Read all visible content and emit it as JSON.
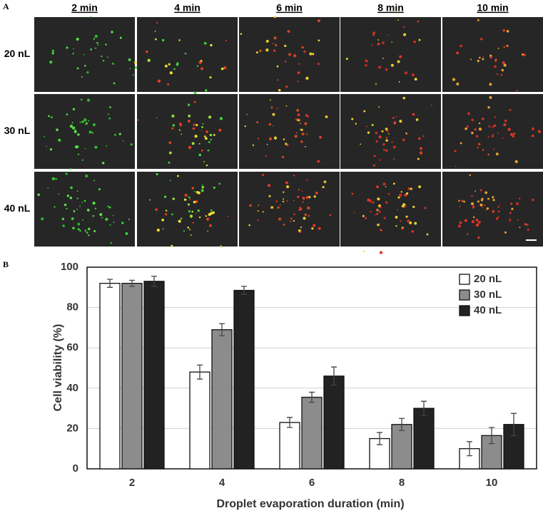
{
  "panel_a": {
    "label": "A",
    "columns": [
      "2 min",
      "4 min",
      "6 min",
      "8 min",
      "10 min"
    ],
    "rows": [
      "20 nL",
      "30 nL",
      "40 nL"
    ]
  },
  "chart_data": {
    "type": "bar",
    "panel_label": "B",
    "xlabel": "Droplet evaporation duration (min)",
    "ylabel": "Cell viability (%)",
    "categories": [
      "2",
      "4",
      "6",
      "8",
      "10"
    ],
    "series": [
      {
        "name": "20 nL",
        "color": "#ffffff",
        "values": [
          92,
          48,
          23,
          15,
          10
        ],
        "errors": [
          2,
          3.5,
          2.5,
          3,
          3.5
        ]
      },
      {
        "name": "30 nL",
        "color": "#8c8c8c",
        "values": [
          92,
          69,
          35.5,
          22,
          16.5
        ],
        "errors": [
          1.5,
          3,
          2.5,
          3,
          4
        ]
      },
      {
        "name": "40 nL",
        "color": "#222222",
        "values": [
          93,
          88.5,
          46,
          30,
          22
        ],
        "errors": [
          2.5,
          2,
          4.5,
          3.5,
          5.5
        ]
      }
    ],
    "ylim": [
      0,
      100
    ],
    "yticks": [
      0,
      20,
      40,
      60,
      80,
      100
    ],
    "grid": true,
    "legend": "upper right"
  }
}
